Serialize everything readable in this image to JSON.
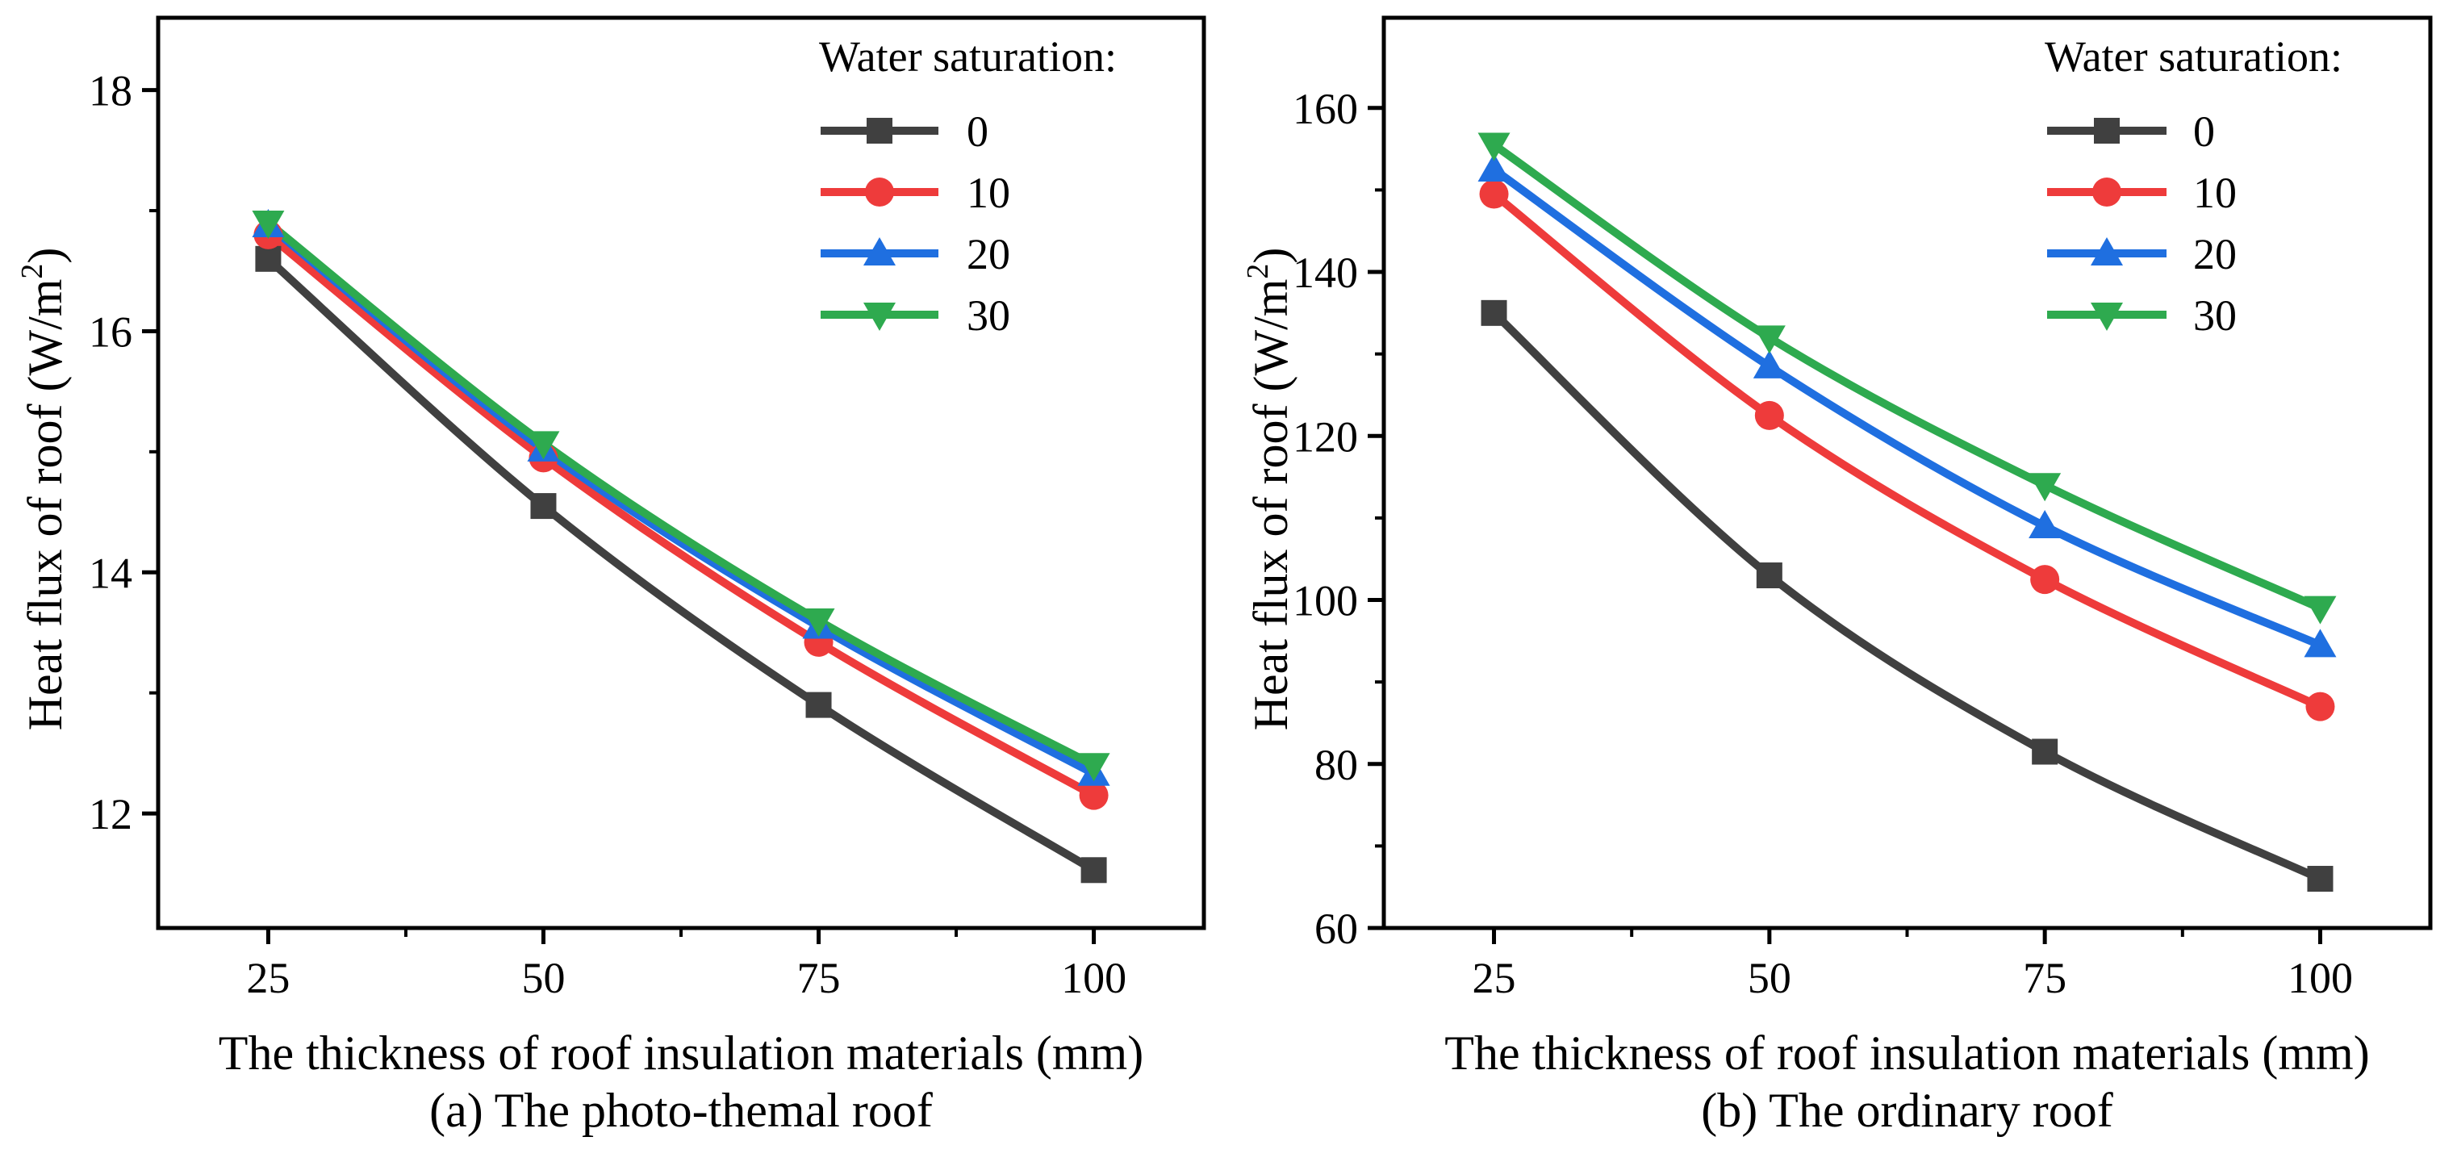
{
  "chart_data": [
    {
      "id": "a",
      "type": "line",
      "caption": "(a) The photo-themal roof",
      "xlabel": "The thickness of roof insulation materials (mm)",
      "ylabel": "Heat flux of roof (W/m",
      "ylabel_sup": "2",
      "ylabel_close": ")",
      "x": [
        25,
        50,
        75,
        100
      ],
      "xlim": [
        15,
        110
      ],
      "ylim": [
        11.05,
        18.6
      ],
      "xticks": [
        25,
        50,
        75,
        100
      ],
      "xtick_labels": [
        "25",
        "50",
        "75",
        "100"
      ],
      "yticks": [
        12,
        14,
        16,
        18
      ],
      "ytick_labels": [
        "12",
        "14",
        "16",
        "18"
      ],
      "legend_title": "Water saturation:",
      "legend_position": "top-right",
      "series": [
        {
          "name": "0",
          "marker": "square",
          "color": "#404040",
          "values": [
            16.6,
            14.55,
            12.9,
            11.53
          ]
        },
        {
          "name": "10",
          "marker": "circle",
          "color": "#ee3b3b",
          "values": [
            16.8,
            14.95,
            13.42,
            12.15
          ]
        },
        {
          "name": "20",
          "marker": "triangle-up",
          "color": "#1f6fe0",
          "values": [
            16.88,
            15.02,
            13.55,
            12.33
          ]
        },
        {
          "name": "30",
          "marker": "triangle-down",
          "color": "#2eaa4f",
          "values": [
            16.9,
            15.07,
            13.6,
            12.4
          ]
        }
      ]
    },
    {
      "id": "b",
      "type": "line",
      "caption": "(b)  The ordinary roof",
      "xlabel": "The thickness of roof insulation materials (mm)",
      "ylabel": "Heat flux of roof (W/m",
      "ylabel_sup": "2",
      "ylabel_close": ")",
      "x": [
        25,
        50,
        75,
        100
      ],
      "xlim": [
        15,
        110
      ],
      "ylim": [
        60,
        171
      ],
      "xticks": [
        25,
        50,
        75,
        100
      ],
      "xtick_labels": [
        "25",
        "50",
        "75",
        "100"
      ],
      "yticks": [
        60,
        80,
        100,
        120,
        140,
        160
      ],
      "ytick_labels": [
        "60",
        "80",
        "100",
        "120",
        "140",
        "160"
      ],
      "legend_title": "Water saturation:",
      "legend_position": "top-right",
      "series": [
        {
          "name": "0",
          "marker": "square",
          "color": "#404040",
          "values": [
            135,
            103,
            81.5,
            66
          ]
        },
        {
          "name": "10",
          "marker": "circle",
          "color": "#ee3b3b",
          "values": [
            149.5,
            122.5,
            102.5,
            87
          ]
        },
        {
          "name": "20",
          "marker": "triangle-up",
          "color": "#1f6fe0",
          "values": [
            152.5,
            128.5,
            109,
            94.5
          ]
        },
        {
          "name": "30",
          "marker": "triangle-down",
          "color": "#2eaa4f",
          "values": [
            155.5,
            132,
            114,
            99
          ]
        }
      ]
    }
  ]
}
